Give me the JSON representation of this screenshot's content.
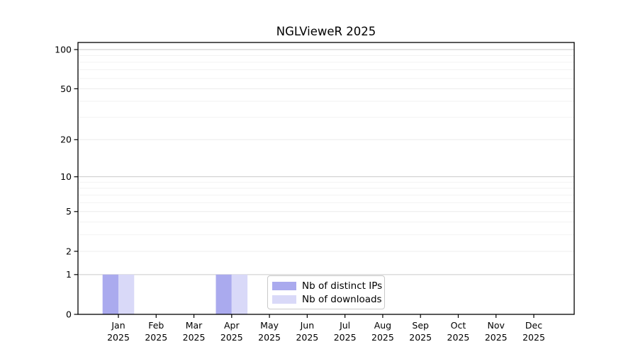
{
  "title": "NGLVieweR 2025",
  "colors": {
    "background": "#ffffff",
    "axis": "#000000",
    "text": "#000000",
    "grid_major": "#c9c9c9",
    "grid_mid": "#ececec",
    "grid_minor": "#f2f2f2",
    "legend_border": "#c9c9c9",
    "bar_distinct_ips": "#aaaaee",
    "bar_downloads": "#d9d9f8"
  },
  "chart_data": {
    "type": "bar",
    "title": "NGLVieweR 2025",
    "xlabel": "",
    "ylabel": "",
    "year": "2025",
    "categories": [
      "Jan",
      "Feb",
      "Mar",
      "Apr",
      "May",
      "Jun",
      "Jul",
      "Aug",
      "Sep",
      "Oct",
      "Nov",
      "Dec"
    ],
    "series": [
      {
        "name": "Nb of distinct IPs",
        "color": "#aaaaee",
        "values": [
          1,
          0,
          0,
          1,
          0,
          0,
          0,
          0,
          0,
          0,
          0,
          0
        ]
      },
      {
        "name": "Nb of downloads",
        "color": "#d9d9f8",
        "values": [
          1,
          0,
          0,
          1,
          0,
          0,
          0,
          0,
          0,
          0,
          0,
          0
        ]
      }
    ],
    "yscale": "log1p",
    "ylim": [
      0,
      113
    ],
    "y_ticks": [
      0,
      1,
      2,
      5,
      10,
      20,
      50,
      100
    ],
    "y_gridlines": {
      "major": [
        1,
        10,
        100
      ],
      "mid": [
        2,
        5,
        20,
        50
      ],
      "minor": [
        3,
        4,
        6,
        7,
        8,
        9,
        30,
        40,
        60,
        70,
        80,
        90
      ]
    },
    "grid": "horizontal",
    "legend_position": "bottom-center-inside"
  }
}
